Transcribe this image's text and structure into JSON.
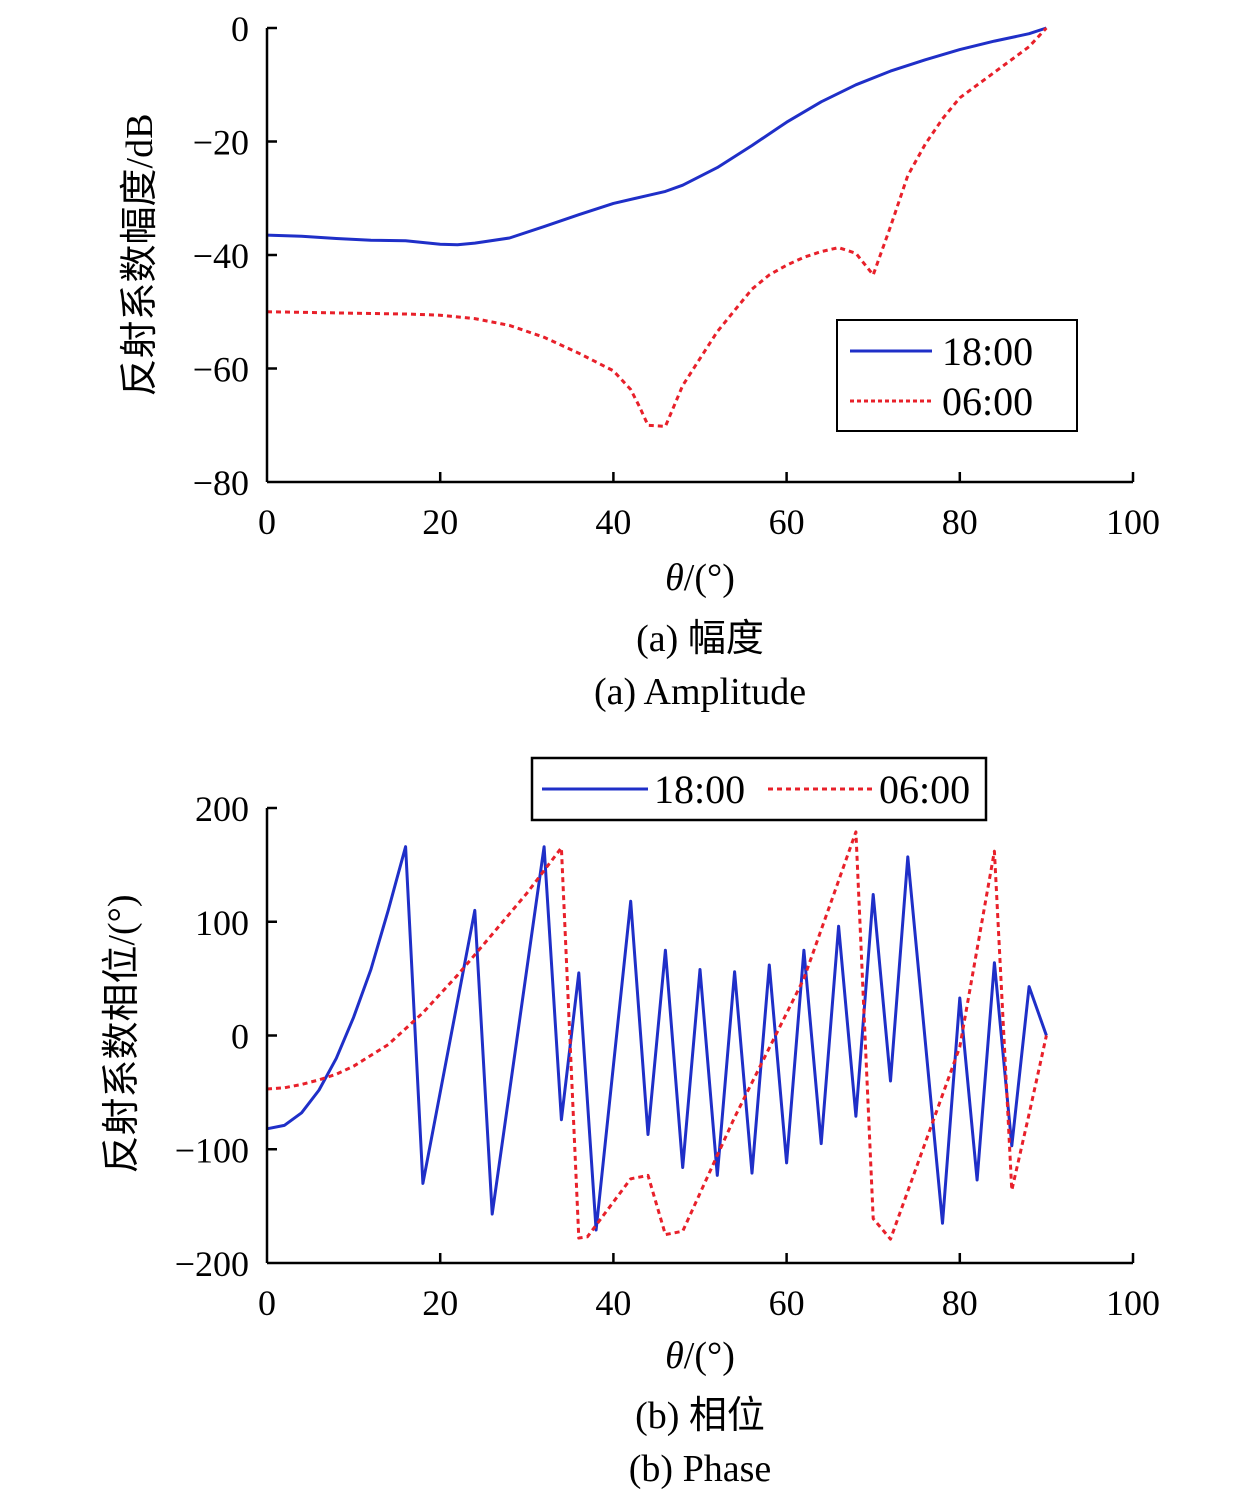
{
  "chart_data": [
    {
      "type": "line",
      "caption_zh": "(a) 幅度",
      "caption_en": "(a) Amplitude",
      "xlabel_var": "θ",
      "xlabel_unit": "/(°)",
      "ylabel": "反射系数幅度/dB",
      "xlim": [
        0,
        100
      ],
      "ylim": [
        -80,
        0
      ],
      "xticks": [
        0,
        20,
        40,
        60,
        80,
        100
      ],
      "yticks": [
        0,
        -20,
        -40,
        -60,
        -80
      ],
      "xtick_labels": [
        "0",
        "20",
        "40",
        "60",
        "80",
        "100"
      ],
      "ytick_labels": [
        "0",
        "−20",
        "−40",
        "−60",
        "−80"
      ],
      "legend_position": "right",
      "series": [
        {
          "name": "18:00",
          "color": "#1f2fc8",
          "style": "solid",
          "x": [
            0,
            4,
            8,
            12,
            16,
            20,
            22,
            24,
            28,
            32,
            36,
            40,
            44,
            46,
            48,
            52,
            56,
            60,
            64,
            68,
            72,
            76,
            80,
            84,
            88,
            90
          ],
          "y": [
            -36.5,
            -36.7,
            -37.1,
            -37.4,
            -37.5,
            -38.1,
            -38.2,
            -37.9,
            -37.0,
            -35.0,
            -32.9,
            -30.9,
            -29.5,
            -28.8,
            -27.7,
            -24.6,
            -20.7,
            -16.6,
            -13.0,
            -10.0,
            -7.6,
            -5.6,
            -3.8,
            -2.3,
            -1.0,
            0.0
          ]
        },
        {
          "name": "06:00",
          "color": "#e8202a",
          "style": "dashed",
          "x": [
            0,
            4,
            8,
            12,
            16,
            20,
            24,
            28,
            32,
            36,
            40,
            42,
            43,
            44,
            46,
            48,
            52,
            56,
            58,
            60,
            62,
            64,
            66,
            68,
            70,
            72,
            74,
            76,
            78,
            80,
            84,
            88,
            90
          ],
          "y": [
            -50.0,
            -50.1,
            -50.2,
            -50.3,
            -50.4,
            -50.6,
            -51.2,
            -52.4,
            -54.5,
            -57.3,
            -60.4,
            -63.7,
            -66.7,
            -70.0,
            -70.2,
            -63.0,
            -53.5,
            -46.0,
            -43.5,
            -41.8,
            -40.4,
            -39.4,
            -38.7,
            -39.7,
            -43.5,
            -35.0,
            -26.0,
            -20.5,
            -16.0,
            -12.3,
            -7.8,
            -3.3,
            0.0
          ]
        }
      ]
    },
    {
      "type": "line",
      "caption_zh": "(b) 相位",
      "caption_en": "(b) Phase",
      "xlabel_var": "θ",
      "xlabel_unit": "/(°)",
      "ylabel": "反射系数相位/(°)",
      "xlim": [
        0,
        100
      ],
      "ylim": [
        -200,
        200
      ],
      "xticks": [
        0,
        20,
        40,
        60,
        80,
        100
      ],
      "yticks": [
        200,
        100,
        0,
        -100,
        -200
      ],
      "xtick_labels": [
        "0",
        "20",
        "40",
        "60",
        "80",
        "100"
      ],
      "ytick_labels": [
        "200",
        "100",
        "0",
        "−100",
        "−200"
      ],
      "legend_position": "top",
      "series": [
        {
          "name": "18:00",
          "color": "#1f2fc8",
          "style": "solid",
          "x": [
            0,
            2,
            4,
            6,
            8,
            10,
            12,
            14,
            16,
            18,
            24,
            26,
            32,
            34,
            36,
            38,
            42,
            44,
            46,
            48,
            50,
            52,
            54,
            56,
            58,
            60,
            62,
            64,
            66,
            68,
            70,
            72,
            74,
            78,
            80,
            82,
            84,
            86,
            88,
            90
          ],
          "y": [
            -82,
            -79,
            -68,
            -48,
            -20,
            16,
            58,
            110,
            166,
            -130,
            110,
            -157,
            166,
            -74,
            55,
            -171,
            118,
            -87,
            75,
            -116,
            58,
            -123,
            56,
            -121,
            62,
            -112,
            75,
            -95,
            96,
            -71,
            124,
            -40,
            157,
            -165,
            33,
            -127,
            64,
            -97,
            43,
            0
          ]
        },
        {
          "name": "06:00",
          "color": "#e8202a",
          "style": "dashed",
          "x": [
            0,
            2,
            4,
            6,
            8,
            10,
            14,
            18,
            22,
            26,
            30,
            34,
            36,
            37,
            42,
            44,
            46,
            48,
            54,
            62,
            68,
            70,
            72,
            80,
            84,
            86,
            88,
            90
          ],
          "y": [
            -47,
            -46,
            -43,
            -39,
            -34,
            -27,
            -8,
            20,
            53,
            89,
            125,
            165,
            -178,
            -177,
            -126,
            -123,
            -175,
            -172,
            -72,
            50,
            179,
            -161,
            -179,
            -10,
            162,
            -136,
            -69,
            0
          ]
        }
      ]
    }
  ]
}
